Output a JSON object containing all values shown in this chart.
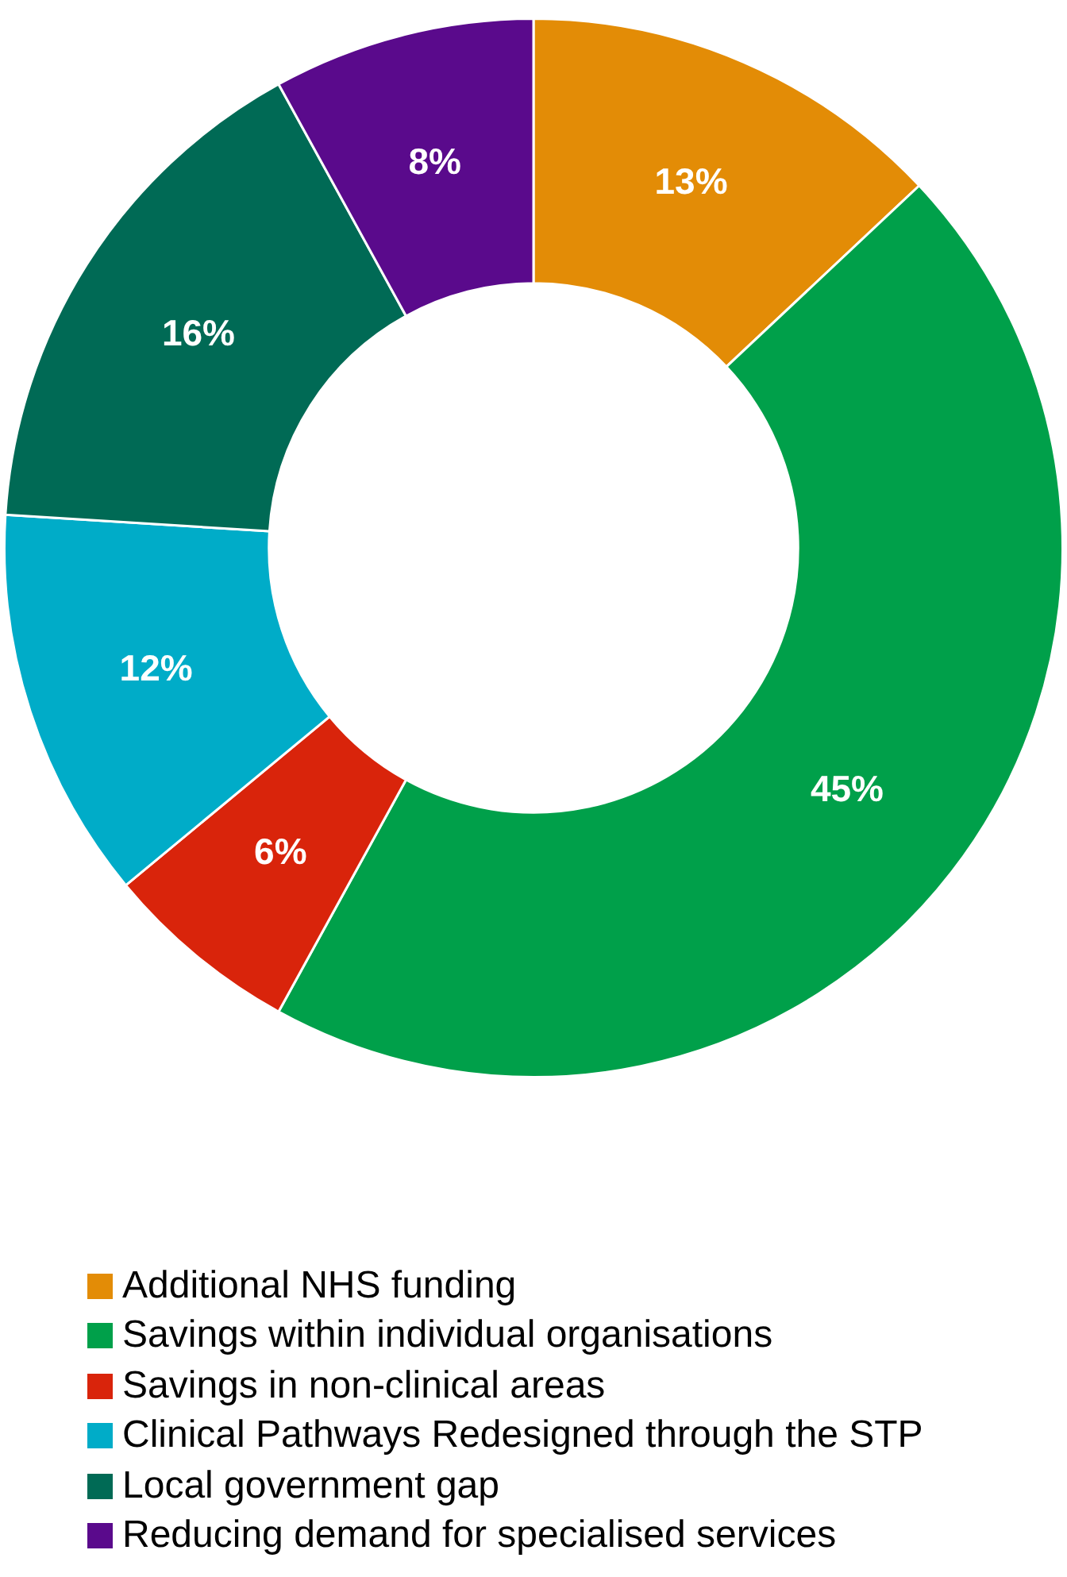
{
  "chart_data": {
    "type": "donut",
    "categories": [
      "Additional NHS funding",
      "Savings within individual organisations",
      "Savings in non-clinical areas",
      "Clinical Pathways Redesigned through the STP",
      "Local government gap",
      "Reducing demand for specialised services"
    ],
    "values": [
      13,
      45,
      6,
      12,
      16,
      8
    ],
    "colors": [
      "#e38c06",
      "#00a04a",
      "#d9240b",
      "#00acc8",
      "#006a55",
      "#5a0a8c"
    ],
    "value_labels": [
      "13%",
      "45%",
      "6%",
      "12%",
      "16%",
      "8%"
    ],
    "legend": "bottom"
  }
}
